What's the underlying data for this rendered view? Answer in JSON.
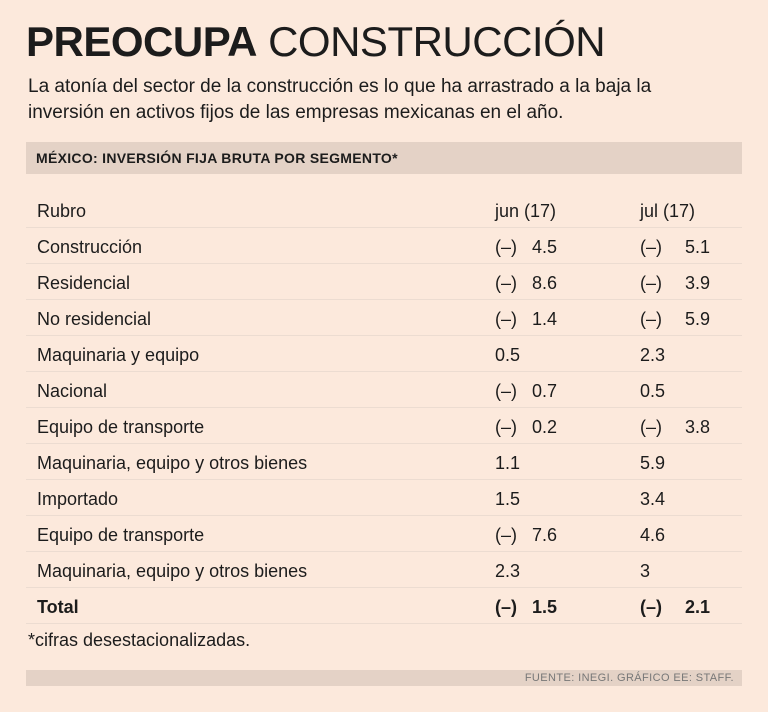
{
  "header": {
    "title_bold": "PREOCUPA",
    "title_light": "CONSTRUCCIÓN",
    "subtitle": "La atonía del sector de la construcción es lo que ha arrastrado a la baja la inversión en activos fijos de las empresas mexicanas en el año."
  },
  "section_title": "MÉXICO: INVERSIÓN FIJA BRUTA POR SEGMENTO*",
  "chart_data": {
    "type": "table",
    "title": "MÉXICO: INVERSIÓN FIJA BRUTA POR SEGMENTO*",
    "columns": [
      "Rubro",
      "jun (17)",
      "jul (17)"
    ],
    "negative_marker": "(–)",
    "rows": [
      {
        "rubro": "Construcción",
        "jun": {
          "neg": true,
          "value": "4.5"
        },
        "jul": {
          "neg": true,
          "value": "5.1"
        }
      },
      {
        "rubro": "Residencial",
        "jun": {
          "neg": true,
          "value": "8.6"
        },
        "jul": {
          "neg": true,
          "value": "3.9"
        }
      },
      {
        "rubro": "No residencial",
        "jun": {
          "neg": true,
          "value": "1.4"
        },
        "jul": {
          "neg": true,
          "value": "5.9"
        }
      },
      {
        "rubro": "Maquinaria y equipo",
        "jun": {
          "neg": false,
          "value": "0.5"
        },
        "jul": {
          "neg": false,
          "value": "2.3"
        }
      },
      {
        "rubro": "Nacional",
        "jun": {
          "neg": true,
          "value": "0.7"
        },
        "jul": {
          "neg": false,
          "value": "0.5"
        }
      },
      {
        "rubro": "Equipo de transporte",
        "jun": {
          "neg": true,
          "value": "0.2"
        },
        "jul": {
          "neg": true,
          "value": "3.8"
        }
      },
      {
        "rubro": "Maquinaria, equipo y otros bienes",
        "jun": {
          "neg": false,
          "value": "1.1"
        },
        "jul": {
          "neg": false,
          "value": "5.9"
        }
      },
      {
        "rubro": "Importado",
        "jun": {
          "neg": false,
          "value": "1.5"
        },
        "jul": {
          "neg": false,
          "value": "3.4"
        }
      },
      {
        "rubro": "Equipo de transporte",
        "jun": {
          "neg": true,
          "value": "7.6"
        },
        "jul": {
          "neg": false,
          "value": "4.6"
        }
      },
      {
        "rubro": "Maquinaria, equipo y otros bienes",
        "jun": {
          "neg": false,
          "value": "2.3"
        },
        "jul": {
          "neg": false,
          "value": "3"
        }
      },
      {
        "rubro": "Total",
        "jun": {
          "neg": true,
          "value": "1.5"
        },
        "jul": {
          "neg": true,
          "value": "2.1"
        },
        "bold": true
      }
    ]
  },
  "footnote": "*cifras desestacionalizadas.",
  "source": "FUENTE: INEGI. GRÁFICO EE: STAFF."
}
